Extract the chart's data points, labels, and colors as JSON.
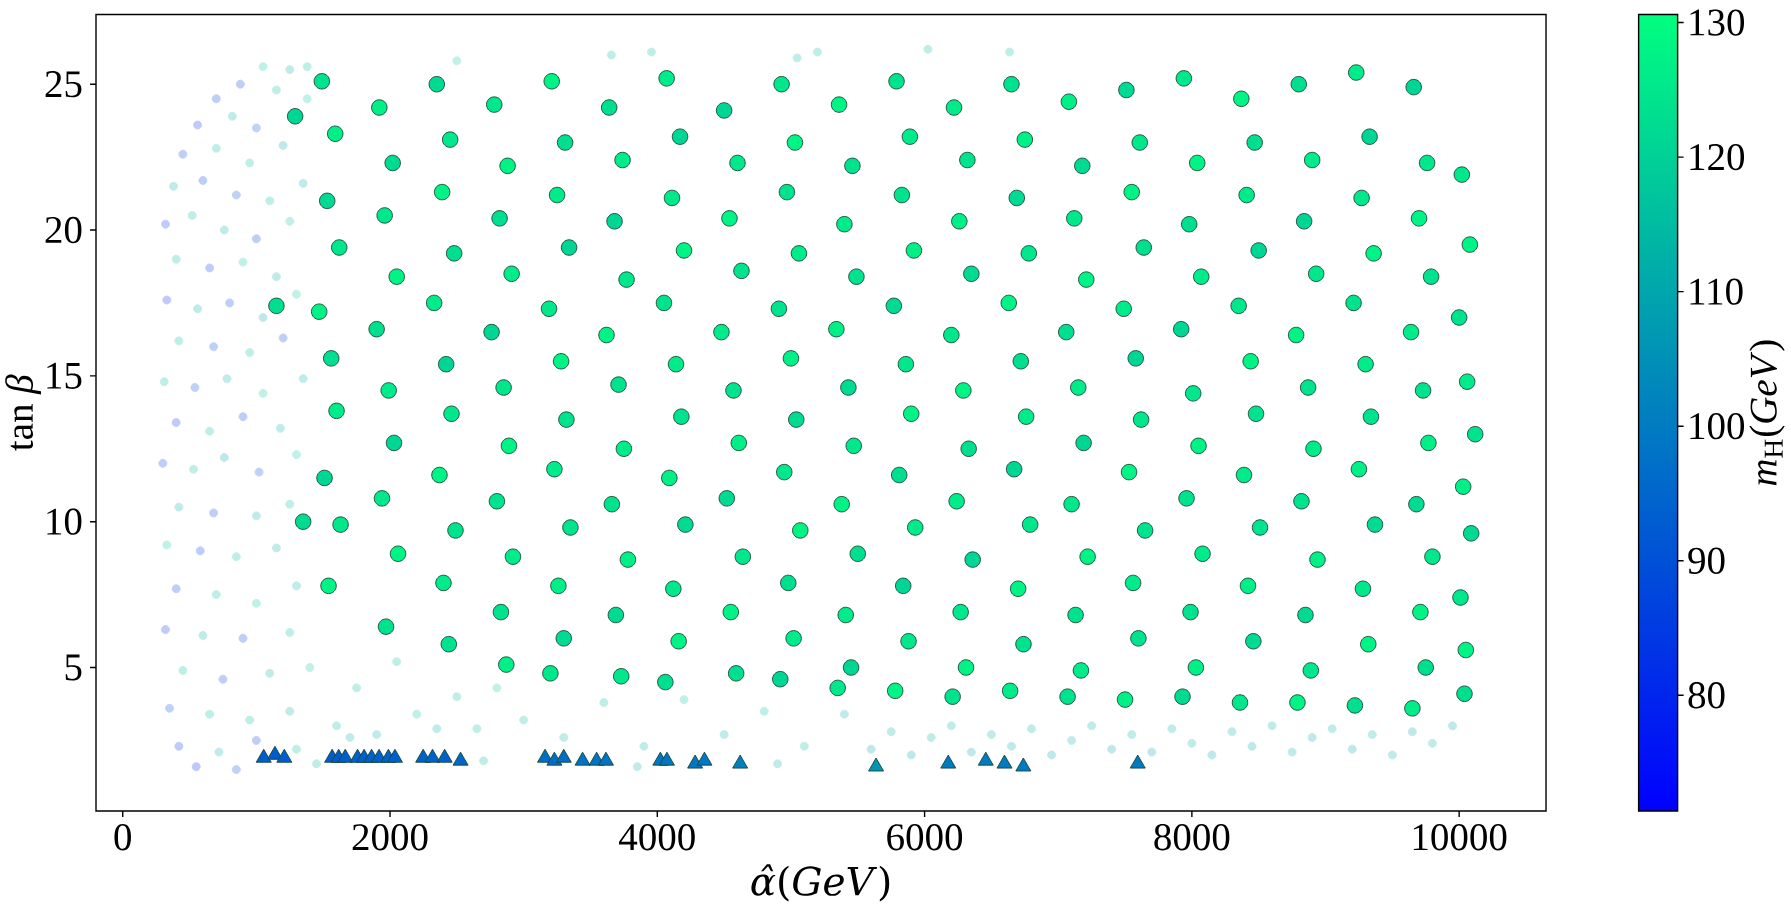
{
  "chart_data": {
    "type": "scatter",
    "xlabel": "*α̂*(*GeV*)",
    "ylabel": "tan *β*",
    "clabel": "*m*$_{H}$(*GeV*)",
    "xlim": [
      -200,
      10650
    ],
    "ylim": [
      0.08,
      27.39
    ],
    "xticks": [
      0,
      2000,
      4000,
      6000,
      8000,
      10000
    ],
    "yticks": [
      5,
      10,
      15,
      20,
      25
    ],
    "clim": [
      71.4,
      130.6
    ],
    "cticks": [
      80,
      90,
      100,
      110,
      120,
      130
    ],
    "series": [
      {
        "marker": "circle",
        "x": [
          1050,
          1250,
          880,
          700,
          1150,
          1380,
          560,
          820,
          1000,
          1380,
          450,
          700,
          950,
          1200,
          380,
          600,
          850,
          1100,
          1350,
          320,
          520,
          760,
          1000,
          1250,
          400,
          650,
          900,
          1150,
          330,
          560,
          800,
          1050,
          1300,
          420,
          680,
          950,
          1200,
          310,
          540,
          780,
          1050,
          1350,
          400,
          650,
          900,
          1180,
          300,
          530,
          760,
          1020,
          1300,
          420,
          680,
          1000,
          1250,
          330,
          580,
          850,
          1150,
          400,
          700,
          1000,
          1300,
          320,
          600,
          900,
          1250,
          450,
          750,
          1100,
          1400,
          350,
          650,
          950,
          1250,
          420,
          720,
          1000,
          1300,
          550,
          850,
          1450,
          1600,
          1750,
          1900,
          2050,
          2200,
          2350,
          2500,
          2650,
          2800,
          3000,
          3300,
          3600,
          3900,
          4200,
          4500,
          4800,
          5100,
          5400,
          1700,
          2700,
          3850,
          4900,
          5600,
          5750,
          5900,
          6050,
          6200,
          6350,
          6500,
          6650,
          6800,
          6950,
          7100,
          7250,
          7400,
          7550,
          7700,
          7850,
          8000,
          8150,
          8300,
          8450,
          8600,
          8750,
          8900,
          9050,
          9200,
          9350,
          9500,
          9650,
          9800,
          9950,
          2500,
          3656,
          3956,
          5046,
          5198,
          6025,
          6636
        ],
        "values": [
          25.6,
          25.5,
          25.0,
          24.5,
          24.8,
          25.6,
          23.6,
          23.9,
          23.5,
          24.5,
          22.6,
          22.8,
          22.3,
          22.9,
          21.5,
          21.7,
          21.2,
          21.0,
          21.6,
          20.2,
          20.5,
          20.0,
          19.7,
          20.3,
          19.0,
          18.7,
          18.9,
          18.4,
          17.6,
          17.3,
          17.5,
          17.0,
          17.8,
          16.2,
          16.0,
          15.8,
          16.3,
          14.8,
          14.6,
          14.9,
          14.4,
          14.9,
          13.4,
          13.1,
          13.6,
          13.2,
          12.0,
          11.8,
          12.2,
          11.7,
          12.3,
          10.5,
          10.3,
          10.2,
          10.6,
          9.2,
          9.0,
          8.8,
          9.1,
          7.7,
          7.5,
          7.2,
          7.8,
          6.3,
          6.1,
          6.0,
          6.2,
          4.9,
          4.6,
          4.8,
          5.0,
          3.6,
          3.4,
          3.2,
          3.5,
          2.3,
          2.1,
          2.5,
          2.2,
          1.6,
          1.5,
          1.7,
          3.0,
          4.3,
          2.7,
          5.2,
          3.4,
          2.9,
          4.0,
          2.9,
          4.3,
          3.2,
          2.6,
          3.8,
          2.3,
          3.9,
          2.7,
          3.5,
          2.3,
          3.4,
          2.6,
          1.8,
          1.6,
          1.7,
          2.2,
          2.8,
          2.0,
          2.6,
          3.0,
          2.1,
          2.7,
          2.3,
          2.9,
          2.0,
          2.5,
          3.0,
          2.2,
          2.7,
          2.1,
          2.9,
          2.4,
          2.0,
          2.8,
          2.3,
          3.0,
          2.1,
          2.6,
          2.9,
          2.2,
          2.7,
          2.0,
          2.8,
          2.4,
          3.0,
          25.8,
          26.0,
          26.1,
          25.9,
          26.1,
          26.2,
          26.1
        ],
        "colors": [
          "#bff1e6",
          "#bfebe9",
          "#bfcef7",
          "#bfcef7",
          "#bfeee7",
          "#bfeee7",
          "#bfcbf9",
          "#bfebe9",
          "#bfd1f6",
          "#bff1e6",
          "#bfcef7",
          "#bfeee7",
          "#bfeee7",
          "#bfe8ea",
          "#bfebe9",
          "#bfcef7",
          "#bfd1f6",
          "#bfeee7",
          "#bfebe9",
          "#bfcbf9",
          "#bfeee7",
          "#bfebe9",
          "#bfcef7",
          "#bff1e6",
          "#bfeee7",
          "#bfcbf9",
          "#bff1e6",
          "#bfebe9",
          "#bfc8fa",
          "#bfebe9",
          "#bfcef7",
          "#bfe8ea",
          "#bff1e6",
          "#bfeee7",
          "#bfd1f6",
          "#bfeee7",
          "#bfcef7",
          "#bfeee7",
          "#bfd1f6",
          "#bfebe9",
          "#bff1e6",
          "#bfebe9",
          "#bfcbf9",
          "#bfeee7",
          "#bfcef7",
          "#bfebe9",
          "#bfcef7",
          "#bfeee7",
          "#bfe8ea",
          "#bfd1f6",
          "#bff1e6",
          "#bfebe9",
          "#bfcef7",
          "#bfebe9",
          "#bfeee7",
          "#bff1e6",
          "#bfcbf9",
          "#bfeee7",
          "#bfebe9",
          "#bfcef7",
          "#bfeee7",
          "#bff1e6",
          "#bfebe9",
          "#bfcbf9",
          "#bfebe9",
          "#bfcef7",
          "#bfeee7",
          "#bfeee7",
          "#bfcef7",
          "#bfebe9",
          "#bff1e6",
          "#bfd1f6",
          "#bfeee7",
          "#bfeee7",
          "#bfebe9",
          "#bfcbf9",
          "#bfebe9",
          "#bfcef7",
          "#bfeee7",
          "#bfc8fa",
          "#bfd1f6",
          "#bfebe9",
          "#bfeee7",
          "#bfeee7",
          "#bfebe9",
          "#bfeee7",
          "#bff1e6",
          "#bfebe9",
          "#bfeee7",
          "#bfeee7",
          "#bff1e6",
          "#bfeee7",
          "#bfebe9",
          "#bfeee7",
          "#bfebe9",
          "#bff1e6",
          "#bfebe9",
          "#bfeee7",
          "#bfeee7",
          "#bfebe9",
          "#bfebe9",
          "#bfeee7",
          "#bfebe9",
          "#bfebe9",
          "#bfe8ea",
          "#bfebe9",
          "#bfe8ea",
          "#bfebe9",
          "#bfebe9",
          "#bfe8ea",
          "#bfebe9",
          "#bfe8ea",
          "#bfebe9",
          "#bfe8ea",
          "#bfebe9",
          "#bfebe9",
          "#bfe8ea",
          "#bfebe9",
          "#bfe8ea",
          "#bfebe9",
          "#bfebe9",
          "#bfe8ea",
          "#bfebe9",
          "#bfe8ea",
          "#bfebe9",
          "#bfebe9",
          "#bfe8ea",
          "#bfebe9",
          "#bfe8ea",
          "#bfebe9",
          "#bfebe9",
          "#bfe8ea",
          "#bfebe9",
          "#bfe8ea",
          "#bff1e6",
          "#bfeee7",
          "#bfeee7",
          "#bfebe9",
          "#bfeee7",
          "#bfeee7",
          "#bfeee7"
        ]
      },
      {
        "marker": "circle",
        "x": [
          1490,
          1590,
          1530,
          1620,
          1470,
          1560,
          1600,
          1510,
          1630,
          1540,
          1920,
          2020,
          1960,
          2050,
          1900,
          1990,
          2030,
          1940,
          2060,
          1970,
          2350,
          2450,
          2390,
          2480,
          2330,
          2420,
          2460,
          2370,
          2490,
          2400,
          2440,
          2780,
          2880,
          2820,
          2910,
          2760,
          2850,
          2890,
          2800,
          2920,
          2830,
          2870,
          3210,
          3310,
          3250,
          3340,
          3190,
          3280,
          3320,
          3230,
          3350,
          3260,
          3300,
          3200,
          3640,
          3740,
          3680,
          3770,
          3620,
          3710,
          3750,
          3660,
          3780,
          3690,
          3730,
          4070,
          4170,
          4110,
          4200,
          4050,
          4140,
          4180,
          4090,
          4210,
          4120,
          4160,
          4060,
          4500,
          4600,
          4540,
          4630,
          4480,
          4570,
          4610,
          4520,
          4640,
          4550,
          4590,
          4930,
          5030,
          4970,
          5060,
          4910,
          5000,
          5040,
          4950,
          5070,
          4980,
          5020,
          4920,
          5360,
          5460,
          5400,
          5490,
          5340,
          5430,
          5470,
          5380,
          5500,
          5410,
          5450,
          5350,
          5790,
          5890,
          5830,
          5920,
          5770,
          5860,
          5900,
          5810,
          5930,
          5840,
          5880,
          5780,
          6220,
          6320,
          6260,
          6350,
          6200,
          6290,
          6330,
          6240,
          6360,
          6270,
          6310,
          6210,
          6650,
          6750,
          6690,
          6780,
          6630,
          6720,
          6760,
          6670,
          6790,
          6700,
          6740,
          6640,
          7080,
          7180,
          7120,
          7210,
          7060,
          7150,
          7190,
          7100,
          7220,
          7130,
          7170,
          7070,
          7510,
          7610,
          7550,
          7640,
          7490,
          7580,
          7620,
          7530,
          7650,
          7560,
          7600,
          7500,
          7940,
          8040,
          7980,
          8070,
          7920,
          8010,
          8050,
          7960,
          8080,
          7990,
          8030,
          7930,
          8370,
          8470,
          8410,
          8500,
          8350,
          8440,
          8480,
          8390,
          8510,
          8420,
          8460,
          8360,
          8800,
          8900,
          8840,
          8930,
          8780,
          8870,
          8910,
          8820,
          8940,
          8850,
          8890,
          8790,
          9230,
          9330,
          9270,
          9360,
          9210,
          9300,
          9340,
          9250,
          9370,
          9280,
          9320,
          9220,
          9660,
          9760,
          9700,
          9790,
          9640,
          9730,
          9770,
          9680,
          9800,
          9710,
          9750,
          9650,
          10020,
          10080,
          10000,
          10060,
          10120,
          10030,
          10090,
          10010,
          10050,
          10040,
          1150,
          1290,
          1350
        ],
        "values": [
          25.1,
          23.3,
          21.0,
          19.4,
          17.2,
          15.6,
          13.8,
          11.5,
          9.9,
          7.8,
          24.2,
          22.3,
          20.5,
          18.4,
          16.6,
          14.5,
          12.7,
          10.8,
          8.9,
          6.4,
          25.0,
          23.1,
          21.3,
          19.2,
          17.5,
          15.4,
          13.7,
          11.6,
          9.7,
          7.9,
          5.8,
          24.3,
          22.2,
          20.4,
          18.5,
          16.5,
          14.6,
          12.6,
          10.7,
          8.8,
          6.9,
          5.1,
          25.1,
          23.0,
          21.2,
          19.4,
          17.3,
          15.5,
          13.5,
          11.8,
          9.8,
          7.8,
          6.0,
          4.8,
          24.2,
          22.4,
          20.3,
          18.3,
          16.4,
          14.7,
          12.5,
          10.6,
          8.7,
          6.8,
          4.7,
          25.2,
          23.2,
          21.1,
          19.3,
          17.5,
          15.4,
          13.6,
          11.5,
          9.9,
          7.7,
          5.9,
          4.5,
          24.1,
          22.3,
          20.4,
          18.6,
          16.5,
          14.5,
          12.7,
          10.8,
          8.8,
          6.9,
          4.8,
          25.0,
          23.0,
          21.3,
          19.2,
          17.3,
          15.6,
          13.5,
          11.7,
          9.7,
          7.9,
          6.0,
          4.6,
          24.3,
          22.2,
          20.2,
          18.4,
          16.6,
          14.6,
          12.6,
          10.6,
          8.9,
          6.8,
          5.0,
          4.3,
          25.1,
          23.2,
          21.2,
          19.3,
          17.4,
          15.4,
          13.7,
          11.6,
          9.8,
          7.8,
          5.9,
          4.2,
          24.2,
          22.4,
          20.3,
          18.5,
          16.4,
          14.5,
          12.5,
          10.7,
          8.7,
          6.9,
          5.0,
          4.0,
          25.0,
          23.1,
          21.1,
          19.2,
          17.5,
          15.5,
          13.6,
          11.8,
          9.9,
          7.7,
          5.8,
          4.2,
          24.4,
          22.2,
          20.4,
          18.3,
          16.5,
          14.6,
          12.7,
          10.6,
          8.8,
          6.8,
          4.9,
          4.0,
          24.8,
          23.0,
          21.3,
          19.4,
          17.3,
          15.6,
          13.5,
          11.7,
          9.7,
          7.9,
          6.0,
          3.9,
          25.2,
          22.3,
          20.2,
          18.4,
          16.6,
          14.4,
          12.6,
          10.8,
          8.9,
          6.9,
          5.0,
          4.0,
          24.5,
          23.0,
          21.2,
          19.3,
          17.4,
          15.5,
          13.7,
          11.6,
          9.8,
          7.8,
          5.9,
          3.8,
          25.0,
          22.4,
          20.3,
          18.5,
          16.4,
          14.6,
          12.5,
          10.7,
          8.7,
          6.8,
          4.9,
          3.8,
          25.4,
          23.2,
          21.1,
          19.2,
          17.5,
          15.4,
          13.6,
          11.8,
          9.9,
          7.7,
          5.8,
          3.7,
          24.9,
          22.3,
          20.4,
          18.4,
          16.5,
          14.5,
          12.7,
          10.6,
          8.8,
          6.9,
          5.0,
          3.6,
          21.9,
          19.5,
          17.0,
          14.8,
          13.0,
          11.2,
          9.6,
          7.4,
          5.6,
          4.1,
          17.4,
          23.9,
          10.0
        ],
        "colors": [
          "#00e38e",
          "#00f087",
          "#00da92",
          "#00e78c",
          "#00f485",
          "#00de90",
          "#00eb89",
          "#00d694",
          "#00e78c",
          "#00f485",
          "#00f087",
          "#00da92",
          "#00e78c",
          "#00f485",
          "#00de90",
          "#00eb89",
          "#00d694",
          "#00e78c",
          "#00f485",
          "#00e38e",
          "#00da92",
          "#00e78c",
          "#00f485",
          "#00de90",
          "#00eb89",
          "#00d694",
          "#00e78c",
          "#00f485",
          "#00e38e",
          "#00eb89",
          "#00e38e",
          "#00e78c",
          "#00f485",
          "#00de90",
          "#00eb89",
          "#00d694",
          "#00e78c",
          "#00f485",
          "#00e38e",
          "#00eb89",
          "#00e38e",
          "#00f087",
          "#00f485",
          "#00de90",
          "#00eb89",
          "#00d694",
          "#00e78c",
          "#00f485",
          "#00e38e",
          "#00eb89",
          "#00e38e",
          "#00f087",
          "#00da92",
          "#00e78c",
          "#00de90",
          "#00eb89",
          "#00d694",
          "#00e78c",
          "#00f485",
          "#00e38e",
          "#00eb89",
          "#00e38e",
          "#00f087",
          "#00da92",
          "#00e78c",
          "#00eb89",
          "#00d694",
          "#00e78c",
          "#00f485",
          "#00e38e",
          "#00eb89",
          "#00e38e",
          "#00f087",
          "#00da92",
          "#00e78c",
          "#00f485",
          "#00de90",
          "#00d694",
          "#00e78c",
          "#00f485",
          "#00e38e",
          "#00eb89",
          "#00e38e",
          "#00f087",
          "#00da92",
          "#00e78c",
          "#00f485",
          "#00de90",
          "#00e78c",
          "#00f485",
          "#00e38e",
          "#00eb89",
          "#00e38e",
          "#00f087",
          "#00da92",
          "#00e78c",
          "#00f485",
          "#00de90",
          "#00eb89",
          "#00d694",
          "#00f485",
          "#00e38e",
          "#00eb89",
          "#00e38e",
          "#00f087",
          "#00da92",
          "#00e78c",
          "#00f485",
          "#00de90",
          "#00eb89",
          "#00d694",
          "#00e78c",
          "#00e38e",
          "#00eb89",
          "#00e38e",
          "#00f087",
          "#00da92",
          "#00e78c",
          "#00f485",
          "#00de90",
          "#00eb89",
          "#00d694",
          "#00e78c",
          "#00f485",
          "#00eb89",
          "#00e38e",
          "#00f087",
          "#00da92",
          "#00e78c",
          "#00f485",
          "#00de90",
          "#00eb89",
          "#00d694",
          "#00e78c",
          "#00f485",
          "#00e38e",
          "#00e38e",
          "#00f087",
          "#00da92",
          "#00e78c",
          "#00f485",
          "#00de90",
          "#00eb89",
          "#00d694",
          "#00e78c",
          "#00f485",
          "#00e38e",
          "#00eb89",
          "#00f087",
          "#00da92",
          "#00e78c",
          "#00f485",
          "#00de90",
          "#00eb89",
          "#00d694",
          "#00e78c",
          "#00f485",
          "#00e38e",
          "#00eb89",
          "#00e38e",
          "#00da92",
          "#00e78c",
          "#00f485",
          "#00de90",
          "#00eb89",
          "#00d694",
          "#00e78c",
          "#00f485",
          "#00e38e",
          "#00eb89",
          "#00e38e",
          "#00f087",
          "#00e78c",
          "#00f485",
          "#00de90",
          "#00eb89",
          "#00d694",
          "#00e78c",
          "#00f485",
          "#00e38e",
          "#00eb89",
          "#00e38e",
          "#00f087",
          "#00da92",
          "#00f485",
          "#00de90",
          "#00eb89",
          "#00d694",
          "#00e78c",
          "#00f485",
          "#00e38e",
          "#00eb89",
          "#00e38e",
          "#00f087",
          "#00da92",
          "#00e78c",
          "#00de90",
          "#00eb89",
          "#00d694",
          "#00e78c",
          "#00f485",
          "#00e38e",
          "#00eb89",
          "#00e38e",
          "#00f087",
          "#00da92",
          "#00e78c",
          "#00f485",
          "#00eb89",
          "#00d694",
          "#00e78c",
          "#00f485",
          "#00e38e",
          "#00eb89",
          "#00e38e",
          "#00f087",
          "#00da92",
          "#00e78c",
          "#00f485",
          "#00de90",
          "#00d694",
          "#00e78c",
          "#00f485",
          "#00e38e",
          "#00eb89",
          "#00e38e",
          "#00f087",
          "#00da92",
          "#00e78c",
          "#00f485",
          "#00de90",
          "#00eb89",
          "#00e78c",
          "#00f485",
          "#00e38e",
          "#00eb89",
          "#00e38e",
          "#00f087",
          "#00da92",
          "#00e78c",
          "#00f485",
          "#00de90",
          "#00de90",
          "#00d694",
          "#00da92"
        ]
      },
      {
        "marker": "triangle",
        "x": [
          1055,
          1139,
          1209,
          1567,
          1616,
          1665,
          1757,
          1806,
          1862,
          1918,
          1988,
          2037,
          2248,
          2318,
          2409,
          2528,
          3160,
          3230,
          3300,
          3441,
          3546,
          3616,
          4023,
          4072,
          4283,
          4353,
          4620,
          5637,
          6177,
          6458,
          6598,
          6739,
          7595
        ],
        "values": [
          1.9,
          2.0,
          1.9,
          1.9,
          1.9,
          1.9,
          1.9,
          1.9,
          1.9,
          1.9,
          1.9,
          1.9,
          1.9,
          1.9,
          1.9,
          1.8,
          1.9,
          1.8,
          1.9,
          1.8,
          1.8,
          1.8,
          1.8,
          1.8,
          1.7,
          1.8,
          1.7,
          1.6,
          1.7,
          1.8,
          1.7,
          1.6,
          1.7
        ],
        "colors": [
          "#005dd0",
          "#005dd0",
          "#005dd0",
          "#005dd0",
          "#005dd0",
          "#005dd0",
          "#0061ce",
          "#0061ce",
          "#0061ce",
          "#0061ce",
          "#0061ce",
          "#0061ce",
          "#0061ce",
          "#0061ce",
          "#0061ce",
          "#0066cc",
          "#006ec8",
          "#006ec8",
          "#006ec8",
          "#0073c6",
          "#0073c6",
          "#0073c6",
          "#0077c4",
          "#0077c4",
          "#0077c4",
          "#0077c4",
          "#0080bf",
          "#0095b4",
          "#007bc1",
          "#007bc1",
          "#007bc1",
          "#007bc1",
          "#007bc1"
        ]
      }
    ]
  }
}
